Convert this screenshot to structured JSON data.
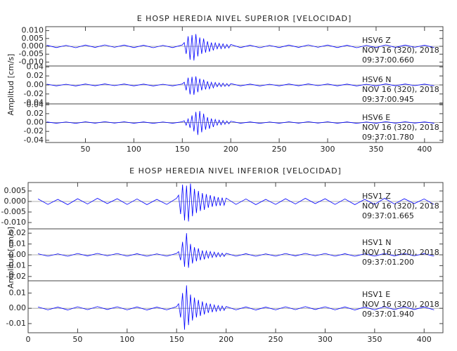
{
  "chart_data": [
    {
      "type": "line",
      "title": "E HOSP HEREDIA NIVEL SUPERIOR [VELOCIDAD]",
      "ylabel": "Amplitud [cm/s]",
      "xlim": [
        9,
        419
      ],
      "xticks": [
        50,
        100,
        150,
        200,
        250,
        300,
        350,
        400
      ],
      "x": [
        10,
        20,
        30,
        40,
        50,
        60,
        70,
        80,
        90,
        100,
        110,
        120,
        130,
        140,
        150,
        152,
        154,
        156,
        158,
        160,
        162,
        164,
        166,
        168,
        170,
        172,
        174,
        176,
        178,
        180,
        182,
        184,
        186,
        188,
        190,
        192,
        194,
        196,
        198,
        200,
        210,
        220,
        230,
        240,
        250,
        260,
        270,
        280,
        290,
        300,
        310,
        320,
        330,
        340,
        350,
        360,
        370,
        380,
        390,
        400,
        410
      ],
      "series": [
        {
          "name": "HSV6   Z",
          "date": "NOV 16 (320), 2018",
          "time": "09:37:00.660",
          "color": "#0000ff",
          "ylim": [
            -0.0125,
            0.0125
          ],
          "yticks": [
            {
              "value": 0.01,
              "label": "0.010"
            },
            0.005,
            {
              "value": 0,
              "label": "0.000"
            },
            -0.005,
            {
              "value": -0.01,
              "label": "-0.010"
            }
          ],
          "values": [
            0.0007,
            -0.0008,
            0.0006,
            -0.0009,
            0.0008,
            -0.0007,
            0.0009,
            -0.0006,
            0.0008,
            -0.0008,
            0.0007,
            -0.0009,
            0.0006,
            -0.0008,
            0.0009,
            0.0024,
            -0.0048,
            0.0064,
            -0.0085,
            0.0072,
            -0.009,
            0.0078,
            -0.0064,
            0.0056,
            -0.0048,
            0.005,
            -0.004,
            0.0032,
            -0.0034,
            0.0024,
            -0.0026,
            0.0022,
            -0.0016,
            0.0018,
            -0.0015,
            0.0016,
            -0.0013,
            0.0012,
            -0.0011,
            0.0012,
            -0.0008,
            0.0007,
            -0.0009,
            0.0006,
            -0.0008,
            0.0008,
            -0.0007,
            0.0009,
            -0.0006,
            0.0008,
            -0.0008,
            0.0007,
            -0.0009,
            0.0006,
            -0.0008,
            0.0009,
            -0.0007,
            0.0008,
            -0.0006,
            0.0007,
            -0.0008
          ]
        },
        {
          "name": "HSV6   N",
          "date": "NOV 16 (320), 2018",
          "time": "09:37:00.945",
          "color": "#0000ff",
          "ylim": [
            -0.042,
            0.042
          ],
          "yticks": [
            0.04,
            0.02,
            {
              "value": 0,
              "label": "0.00"
            },
            -0.02,
            -0.04
          ],
          "values": [
            0.0018,
            -0.002,
            0.0015,
            -0.0022,
            0.002,
            -0.0018,
            0.0022,
            -0.0015,
            0.002,
            -0.002,
            0.0018,
            -0.0022,
            0.0015,
            -0.002,
            0.0022,
            0.006,
            -0.012,
            0.016,
            -0.021,
            0.018,
            -0.022,
            0.019,
            -0.016,
            0.014,
            -0.012,
            0.012,
            -0.01,
            0.008,
            -0.0085,
            0.006,
            -0.0065,
            0.0055,
            -0.004,
            0.0045,
            -0.0038,
            0.004,
            -0.0032,
            0.003,
            -0.0028,
            0.003,
            -0.002,
            0.0018,
            -0.0022,
            0.0015,
            -0.002,
            0.002,
            -0.0018,
            0.0022,
            -0.0015,
            0.002,
            -0.002,
            0.0018,
            -0.0022,
            0.0015,
            -0.002,
            0.0022,
            -0.0018,
            0.002,
            -0.0015,
            0.0018,
            -0.002
          ]
        },
        {
          "name": "HSV6   E",
          "date": "NOV 16 (320), 2018",
          "time": "09:37:01.780",
          "color": "#0000ff",
          "ylim": [
            -0.045,
            0.042
          ],
          "yticks": [
            0.04,
            0.02,
            {
              "value": 0,
              "label": "0.00"
            },
            -0.02,
            -0.04
          ],
          "values": [
            0.0014,
            -0.0016,
            0.0012,
            -0.0018,
            0.0016,
            -0.0014,
            0.0018,
            -0.0012,
            0.0016,
            -0.0016,
            0.0014,
            -0.0018,
            0.0012,
            -0.0016,
            0.0018,
            0.004,
            -0.006,
            0.008,
            -0.012,
            0.016,
            -0.02,
            0.024,
            -0.028,
            0.026,
            -0.022,
            0.02,
            -0.016,
            0.012,
            -0.014,
            0.009,
            -0.01,
            0.007,
            -0.006,
            0.0055,
            -0.005,
            0.0045,
            -0.004,
            0.0035,
            -0.003,
            0.003,
            -0.0016,
            0.0014,
            -0.0018,
            0.0012,
            -0.0016,
            0.0016,
            -0.0014,
            0.0018,
            -0.0012,
            0.0016,
            -0.0016,
            0.0014,
            -0.0018,
            0.0012,
            -0.0016,
            0.0018,
            -0.0014,
            0.0016,
            -0.0012,
            0.0014,
            -0.0016
          ]
        }
      ]
    },
    {
      "type": "line",
      "title": "E HOSP HEREDIA NIVEL INFERIOR [VELOCIDAD]",
      "ylabel": "Amplitud [cm/s]",
      "xlim": [
        0,
        419
      ],
      "xticks": [
        0,
        50,
        100,
        150,
        200,
        250,
        300,
        350,
        400
      ],
      "x": [
        10,
        20,
        30,
        40,
        50,
        60,
        70,
        80,
        90,
        100,
        110,
        120,
        130,
        140,
        150,
        152,
        154,
        156,
        158,
        160,
        162,
        164,
        166,
        168,
        170,
        172,
        174,
        176,
        178,
        180,
        182,
        184,
        186,
        188,
        190,
        192,
        194,
        196,
        198,
        200,
        210,
        220,
        230,
        240,
        250,
        260,
        270,
        280,
        290,
        300,
        310,
        320,
        330,
        340,
        350,
        360,
        370,
        380,
        390,
        400,
        410
      ],
      "series": [
        {
          "name": "HSV1   Z",
          "date": "NOV 16 (320), 2018",
          "time": "09:37:01.665",
          "color": "#0000ff",
          "ylim": [
            -0.013,
            0.009
          ],
          "yticks": [
            0.005,
            {
              "value": 0,
              "label": "0.000"
            },
            -0.005,
            {
              "value": -0.01,
              "label": "-0.010"
            }
          ],
          "values": [
            0.0012,
            -0.0014,
            0.001,
            -0.0015,
            0.0013,
            -0.0012,
            0.0015,
            -0.001,
            0.0013,
            -0.0014,
            0.0012,
            -0.0015,
            0.001,
            -0.0014,
            0.0015,
            0.003,
            -0.006,
            0.008,
            -0.009,
            0.0075,
            -0.0095,
            0.0085,
            -0.007,
            0.006,
            -0.0055,
            0.005,
            -0.0045,
            0.004,
            -0.004,
            0.0035,
            -0.003,
            0.003,
            -0.0025,
            0.0025,
            -0.0022,
            0.002,
            -0.002,
            0.0018,
            -0.0018,
            0.0016,
            -0.0014,
            0.0012,
            -0.0015,
            0.001,
            -0.0014,
            0.0013,
            -0.0012,
            0.0015,
            -0.001,
            0.0013,
            -0.0014,
            0.0012,
            -0.0015,
            0.001,
            -0.0014,
            0.0015,
            -0.0012,
            0.0013,
            -0.001,
            0.0012,
            -0.0014
          ]
        },
        {
          "name": "HSV1   N",
          "date": "NOV 16 (320), 2018",
          "time": "09:37:01.200",
          "color": "#0000ff",
          "ylim": [
            -0.024,
            0.024
          ],
          "yticks": [
            0.02,
            0.01,
            {
              "value": 0,
              "label": "0.00"
            },
            -0.01,
            -0.02
          ],
          "values": [
            0.001,
            -0.0012,
            0.0009,
            -0.0013,
            0.0012,
            -0.001,
            0.0013,
            -0.0009,
            0.0012,
            -0.0012,
            0.001,
            -0.0013,
            0.0009,
            -0.0012,
            0.0013,
            0.003,
            -0.005,
            0.012,
            -0.011,
            0.02,
            -0.012,
            0.01,
            -0.008,
            0.007,
            -0.006,
            0.006,
            -0.005,
            0.004,
            -0.0042,
            0.0035,
            -0.003,
            0.003,
            -0.0025,
            0.0025,
            -0.002,
            0.002,
            -0.0018,
            0.0016,
            -0.0015,
            0.0014,
            -0.0012,
            0.001,
            -0.0013,
            0.0009,
            -0.0012,
            0.0012,
            -0.001,
            0.0013,
            -0.0009,
            0.0012,
            -0.0012,
            0.001,
            -0.0013,
            0.0009,
            -0.0012,
            0.0013,
            -0.001,
            0.0012,
            -0.0009,
            0.001,
            -0.0012
          ]
        },
        {
          "name": "HSV1   E",
          "date": "NOV 16 (320), 2018",
          "time": "09:37:01.940",
          "color": "#0000ff",
          "ylim": [
            -0.016,
            0.018
          ],
          "yticks": [
            0.01,
            {
              "value": 0,
              "label": "0.00"
            },
            -0.01
          ],
          "values": [
            0.0009,
            -0.001,
            0.0008,
            -0.0011,
            0.001,
            -0.0009,
            0.0011,
            -0.0008,
            0.001,
            -0.001,
            0.0009,
            -0.0011,
            0.0008,
            -0.001,
            0.0011,
            0.003,
            -0.006,
            0.01,
            -0.014,
            0.015,
            -0.011,
            0.009,
            -0.008,
            0.007,
            -0.006,
            0.0055,
            -0.005,
            0.0045,
            -0.004,
            0.0035,
            -0.003,
            0.003,
            -0.0025,
            0.0022,
            -0.002,
            0.0018,
            -0.0016,
            0.0015,
            -0.0014,
            0.0012,
            -0.001,
            0.0009,
            -0.0011,
            0.0008,
            -0.001,
            0.001,
            -0.0009,
            0.0011,
            -0.0008,
            0.001,
            -0.001,
            0.0009,
            -0.0011,
            0.0008,
            -0.001,
            0.0011,
            -0.0009,
            0.001,
            -0.0008,
            0.0009,
            -0.001
          ]
        }
      ]
    }
  ]
}
